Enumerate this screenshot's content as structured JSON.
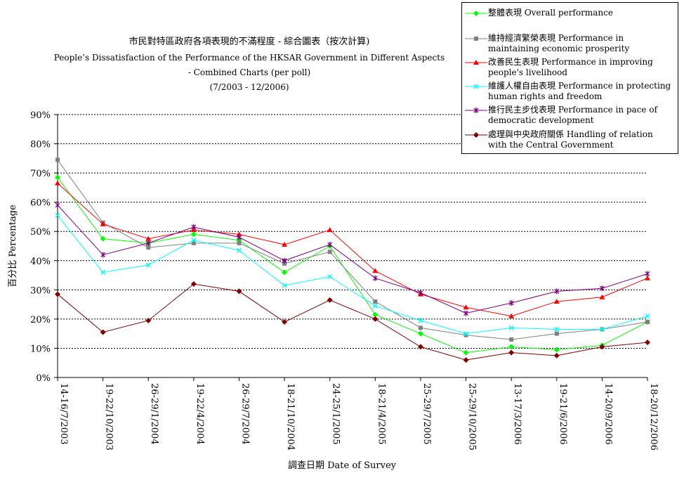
{
  "chart_data": {
    "type": "line",
    "title": "市民對特區政府各項表現的不滿程度  -  綜合圖表（按次計算)",
    "subtitle_lines": [
      "People’s Dissatisfaction of the Performance of the HKSAR Government in Different Aspects",
      "- Combined Charts  (per poll)",
      "(7/2003 - 12/2006)"
    ],
    "xlabel": "調查日期 Date of Survey",
    "ylabel": "百分比 Percentage",
    "ylim": [
      0,
      90
    ],
    "yticks": [
      "0%",
      "10%",
      "20%",
      "30%",
      "40%",
      "50%",
      "60%",
      "70%",
      "80%",
      "90%"
    ],
    "grid": "horizontal dashed",
    "legend_position": "top-right",
    "categories": [
      "14-16/7/2003",
      "19-22/10/2003",
      "26-29/1/2004",
      "19-22/4/2004",
      "26-29/7/2004",
      "18-21/10/2004",
      "24-25/1/2005",
      "18-21/4/2005",
      "25-29/7/2005",
      "25-29/10/2005",
      "13-17/3/2006",
      "19-21/6/2006",
      "14-20/9/2006",
      "18-20/12/2006"
    ],
    "series": [
      {
        "name": "整體表現 Overall performance",
        "color": "#00ff00",
        "marker": "diamond",
        "values": [
          68.5,
          47.5,
          46,
          49,
          47,
          36,
          45,
          21.5,
          15,
          8.5,
          10.5,
          9.5,
          11,
          19
        ]
      },
      {
        "name": "維持經濟繁榮表現 Performance in maintaining economic prosperity",
        "color": "#808080",
        "marker": "square",
        "values": [
          74.5,
          53,
          44.5,
          46,
          46,
          39,
          43,
          26,
          17,
          14.5,
          13,
          15,
          16.5,
          19
        ]
      },
      {
        "name": "改善民生表現 Performance in improving people's livelihood",
        "color": "#ff0000",
        "marker": "triangle",
        "values": [
          66.5,
          52.5,
          47.5,
          50.5,
          49,
          45.5,
          50.5,
          36.5,
          28.5,
          24,
          21,
          26,
          27.5,
          34
        ]
      },
      {
        "name": "維護人權自由表現 Performance in protecting human rights and freedom",
        "color": "#00ffff",
        "marker": "x",
        "values": [
          55.5,
          36,
          38.5,
          47,
          43.5,
          31.5,
          34.5,
          24.5,
          19.5,
          15,
          17,
          16.5,
          16.5,
          21
        ]
      },
      {
        "name": "推行民主步伐表現 Performance in pace of democratic development",
        "color": "#800080",
        "marker": "star",
        "values": [
          59,
          42,
          46,
          51.5,
          48,
          40,
          45.5,
          34,
          29,
          22,
          25.5,
          29.5,
          30.5,
          35.5
        ]
      },
      {
        "name": "處理與中央政府關係 Handling of relation with the Central Government",
        "color": "#800000",
        "marker": "diamond",
        "values": [
          28.5,
          15.5,
          19.5,
          32,
          29.5,
          19,
          26.5,
          20,
          10.5,
          6,
          8.5,
          7.5,
          10.5,
          12
        ]
      }
    ]
  },
  "legend": {
    "items": [
      {
        "line1": "整體表現 Overall performance",
        "line2": ""
      },
      {
        "line1": "維持經濟繁榮表現 Performance in",
        "line2": "maintaining economic prosperity"
      },
      {
        "line1": "改善民生表現 Performance in improving",
        "line2": "people's livelihood"
      },
      {
        "line1": "維護人權自由表現 Performance in protecting",
        "line2": "human rights and freedom"
      },
      {
        "line1": "推行民主步伐表現 Performance in pace of",
        "line2": "democratic development"
      },
      {
        "line1": "處理與中央政府關係 Handling of relation",
        "line2": "with the Central Government"
      }
    ]
  }
}
